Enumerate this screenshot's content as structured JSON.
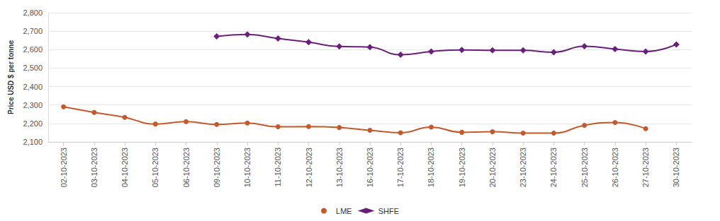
{
  "chart_data": {
    "type": "line",
    "y_label": "Price USD $ per tonne",
    "categories": [
      "02-10-2023",
      "03-10-2023",
      "04-10-2023",
      "05-10-2023",
      "06-10-2023",
      "09-10-2023",
      "10-10-2023",
      "11-10-2023",
      "12-10-2023",
      "13-10-2023",
      "16-10-2023",
      "17-10-2023",
      "18-10-2023",
      "19-10-2023",
      "20-10-2023",
      "23-10-2023",
      "24-10-2023",
      "25-10-2023",
      "26-10-2023",
      "27-10-2023",
      "30-10-2023"
    ],
    "series": [
      {
        "name": "LME",
        "color": "#c45a2c",
        "marker": "circle",
        "values": [
          2290,
          2260,
          2233,
          2197,
          2210,
          2195,
          2202,
          2182,
          2183,
          2178,
          2163,
          2150,
          2180,
          2152,
          2155,
          2148,
          2148,
          2190,
          2205,
          2172,
          null
        ]
      },
      {
        "name": "SHFE",
        "color": "#6a1f7a",
        "marker": "diamond",
        "values": [
          null,
          null,
          null,
          null,
          null,
          2672,
          2682,
          2660,
          2640,
          2617,
          2614,
          2572,
          2590,
          2598,
          2596,
          2596,
          2586,
          2618,
          2603,
          2590,
          2628
        ]
      }
    ],
    "ylim": [
      2100,
      2800
    ],
    "yticks": [
      2100,
      2200,
      2300,
      2400,
      2500,
      2600,
      2700,
      2800
    ],
    "grid": true,
    "legend": "bottom"
  }
}
